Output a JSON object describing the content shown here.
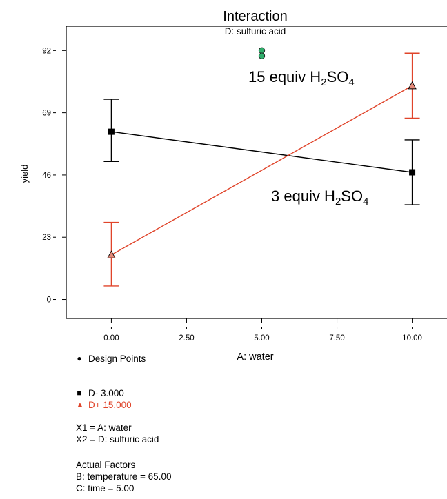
{
  "chart_data": {
    "type": "line",
    "title": "Interaction",
    "subtitle": "D: sulfuric acid",
    "xlabel": "A: water",
    "ylabel": "yield",
    "xlim": [
      -1.5,
      11.5
    ],
    "ylim": [
      -7,
      101
    ],
    "x_ticks": [
      "0.00",
      "2.50",
      "5.00",
      "7.50",
      "10.00"
    ],
    "y_ticks": [
      "0",
      "23",
      "46",
      "69",
      "92"
    ],
    "grid": false,
    "series": [
      {
        "name": "D- 3.000",
        "color": "#000000",
        "marker": "square",
        "x": [
          0,
          10
        ],
        "y": [
          62,
          47
        ],
        "err_low": [
          51,
          35
        ],
        "err_high": [
          74,
          59
        ]
      },
      {
        "name": "D+ 15.000",
        "color": "#e0442a",
        "marker": "triangle",
        "x": [
          0,
          10
        ],
        "y": [
          16.5,
          79
        ],
        "err_low": [
          5,
          67
        ],
        "err_high": [
          28.5,
          91
        ]
      }
    ],
    "design_points": [
      {
        "x": 5,
        "y": 92,
        "color": "#2fae6b"
      },
      {
        "x": 5,
        "y": 90,
        "color": "#2fae6b"
      }
    ],
    "annotations": [
      {
        "text": "15 equiv H",
        "sub": "2",
        "text2": "SO",
        "sub2": "4"
      },
      {
        "text": "3 equiv H",
        "sub": "2",
        "text2": "SO",
        "sub2": "4"
      }
    ]
  },
  "legend": {
    "design_points": "Design Points",
    "series_low": "D- 3.000",
    "series_high": "D+ 15.000",
    "x1": "X1 = A: water",
    "x2": "X2 = D: sulfuric acid",
    "actual_factors_title": "Actual Factors",
    "factor_b": "B: temperature = 65.00",
    "factor_c": "C: time = 5.00"
  }
}
